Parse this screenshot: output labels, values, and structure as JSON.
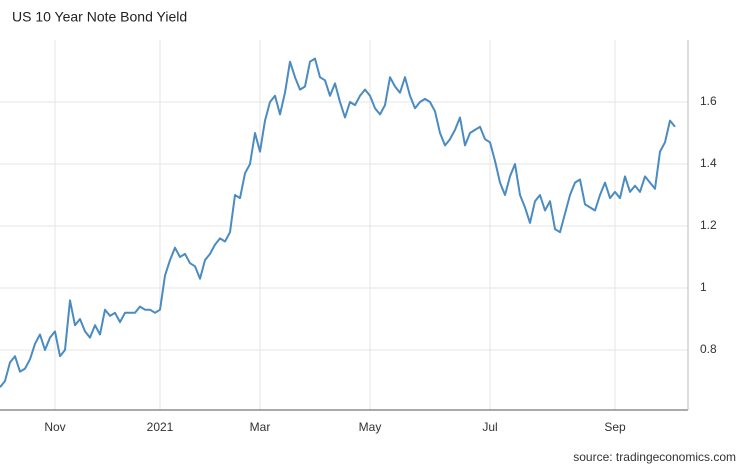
{
  "chart_data": {
    "type": "line",
    "title": "US 10 Year Note Bond Yield",
    "source": "source: tradingeconomics.com",
    "categories": [
      null,
      null,
      null,
      null,
      null,
      null,
      null,
      null,
      null,
      null,
      null,
      "Nov",
      null,
      null,
      null,
      null,
      null,
      null,
      null,
      null,
      null,
      null,
      null,
      null,
      null,
      null,
      null,
      null,
      null,
      null,
      null,
      null,
      "2021",
      null,
      null,
      null,
      null,
      null,
      null,
      null,
      null,
      null,
      null,
      null,
      null,
      null,
      null,
      null,
      null,
      null,
      null,
      null,
      "Mar",
      null,
      null,
      null,
      null,
      null,
      null,
      null,
      null,
      null,
      null,
      null,
      null,
      null,
      null,
      null,
      null,
      null,
      null,
      null,
      null,
      null,
      "May",
      null,
      null,
      null,
      null,
      null,
      null,
      null,
      null,
      null,
      null,
      null,
      null,
      null,
      null,
      null,
      null,
      null,
      null,
      null,
      null,
      null,
      null,
      null,
      "Jul",
      null,
      null,
      null,
      null,
      null,
      null,
      null,
      null,
      null,
      null,
      null,
      null,
      null,
      null,
      null,
      null,
      null,
      null,
      null,
      null,
      null,
      null,
      null,
      null,
      "Sep",
      null,
      null,
      null,
      null,
      null,
      null,
      null,
      null,
      null,
      null,
      null,
      null
    ],
    "values": [
      0.68,
      0.7,
      0.76,
      0.78,
      0.73,
      0.74,
      0.77,
      0.82,
      0.85,
      0.8,
      0.84,
      0.86,
      0.78,
      0.8,
      0.96,
      0.88,
      0.9,
      0.86,
      0.84,
      0.88,
      0.85,
      0.93,
      0.91,
      0.92,
      0.89,
      0.92,
      0.92,
      0.92,
      0.94,
      0.93,
      0.93,
      0.92,
      0.93,
      1.04,
      1.09,
      1.13,
      1.1,
      1.11,
      1.08,
      1.07,
      1.03,
      1.09,
      1.11,
      1.14,
      1.16,
      1.15,
      1.18,
      1.3,
      1.29,
      1.37,
      1.4,
      1.5,
      1.44,
      1.54,
      1.6,
      1.62,
      1.56,
      1.63,
      1.73,
      1.68,
      1.64,
      1.65,
      1.73,
      1.74,
      1.68,
      1.67,
      1.62,
      1.66,
      1.6,
      1.55,
      1.6,
      1.59,
      1.62,
      1.64,
      1.62,
      1.58,
      1.56,
      1.59,
      1.68,
      1.65,
      1.63,
      1.68,
      1.62,
      1.58,
      1.6,
      1.61,
      1.6,
      1.57,
      1.5,
      1.46,
      1.48,
      1.51,
      1.55,
      1.46,
      1.5,
      1.51,
      1.52,
      1.48,
      1.47,
      1.41,
      1.34,
      1.3,
      1.36,
      1.4,
      1.3,
      1.26,
      1.21,
      1.28,
      1.3,
      1.25,
      1.28,
      1.19,
      1.18,
      1.24,
      1.3,
      1.34,
      1.35,
      1.27,
      1.26,
      1.25,
      1.3,
      1.34,
      1.29,
      1.31,
      1.29,
      1.36,
      1.31,
      1.33,
      1.31,
      1.36,
      1.34,
      1.32,
      1.44,
      1.47,
      1.54,
      1.52
    ],
    "color": "#4a8bc2",
    "ylim": [
      0.6,
      1.8
    ],
    "yticks": [
      0.8,
      1,
      1.2,
      1.4,
      1.6
    ],
    "grid": true
  }
}
